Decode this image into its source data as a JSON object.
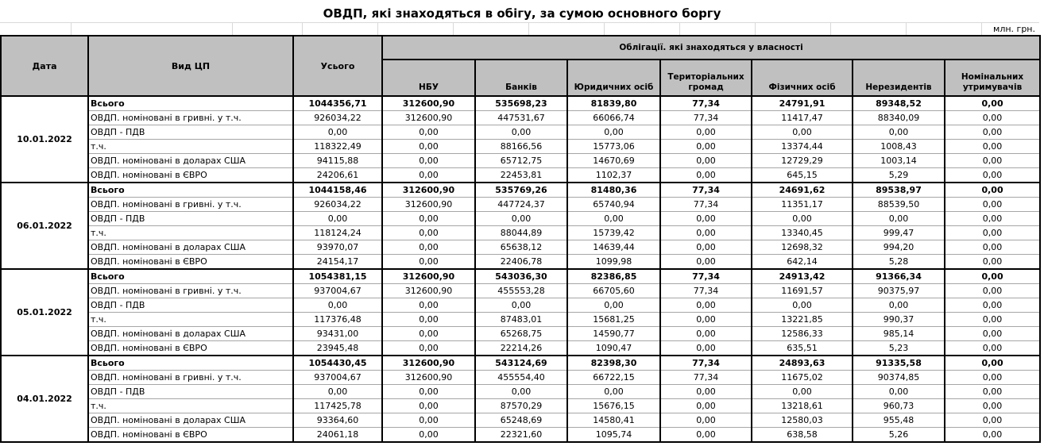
{
  "title": "ОВДП, які знаходяться в обігу, за сумою основного боргу",
  "unit_label": "млн. грн.",
  "table": {
    "col_headers": {
      "date": "Дата",
      "type": "Вид ЦП",
      "total": "Усього",
      "group": "Облігації. які знаходяться у власності",
      "owners": [
        "НБУ",
        "Банків",
        "Юридичних осіб",
        "Територіальних громад",
        "Фізичних осіб",
        "Нерезидентів",
        "Номінальних утримувачів"
      ]
    },
    "row_labels": [
      "Всього",
      "ОВДП. номіновані в гривні. у т.ч.",
      "ОВДП - ПДВ",
      "т.ч.",
      "ОВДП. номіновані в доларах США",
      "ОВДП. номіновані в ЄВРО"
    ],
    "groups": [
      {
        "date": "10.01.2022",
        "rows": [
          [
            "1044356,71",
            "312600,90",
            "535698,23",
            "81839,80",
            "77,34",
            "24791,91",
            "89348,52",
            "0,00"
          ],
          [
            "926034,22",
            "312600,90",
            "447531,67",
            "66066,74",
            "77,34",
            "11417,47",
            "88340,09",
            "0,00"
          ],
          [
            "0,00",
            "0,00",
            "0,00",
            "0,00",
            "0,00",
            "0,00",
            "0,00",
            "0,00"
          ],
          [
            "118322,49",
            "0,00",
            "88166,56",
            "15773,06",
            "0,00",
            "13374,44",
            "1008,43",
            "0,00"
          ],
          [
            "94115,88",
            "0,00",
            "65712,75",
            "14670,69",
            "0,00",
            "12729,29",
            "1003,14",
            "0,00"
          ],
          [
            "24206,61",
            "0,00",
            "22453,81",
            "1102,37",
            "0,00",
            "645,15",
            "5,29",
            "0,00"
          ]
        ]
      },
      {
        "date": "06.01.2022",
        "rows": [
          [
            "1044158,46",
            "312600,90",
            "535769,26",
            "81480,36",
            "77,34",
            "24691,62",
            "89538,97",
            "0,00"
          ],
          [
            "926034,22",
            "312600,90",
            "447724,37",
            "65740,94",
            "77,34",
            "11351,17",
            "88539,50",
            "0,00"
          ],
          [
            "0,00",
            "0,00",
            "0,00",
            "0,00",
            "0,00",
            "0,00",
            "0,00",
            "0,00"
          ],
          [
            "118124,24",
            "0,00",
            "88044,89",
            "15739,42",
            "0,00",
            "13340,45",
            "999,47",
            "0,00"
          ],
          [
            "93970,07",
            "0,00",
            "65638,12",
            "14639,44",
            "0,00",
            "12698,32",
            "994,20",
            "0,00"
          ],
          [
            "24154,17",
            "0,00",
            "22406,78",
            "1099,98",
            "0,00",
            "642,14",
            "5,28",
            "0,00"
          ]
        ]
      },
      {
        "date": "05.01.2022",
        "rows": [
          [
            "1054381,15",
            "312600,90",
            "543036,30",
            "82386,85",
            "77,34",
            "24913,42",
            "91366,34",
            "0,00"
          ],
          [
            "937004,67",
            "312600,90",
            "455553,28",
            "66705,60",
            "77,34",
            "11691,57",
            "90375,97",
            "0,00"
          ],
          [
            "0,00",
            "0,00",
            "0,00",
            "0,00",
            "0,00",
            "0,00",
            "0,00",
            "0,00"
          ],
          [
            "117376,48",
            "0,00",
            "87483,01",
            "15681,25",
            "0,00",
            "13221,85",
            "990,37",
            "0,00"
          ],
          [
            "93431,00",
            "0,00",
            "65268,75",
            "14590,77",
            "0,00",
            "12586,33",
            "985,14",
            "0,00"
          ],
          [
            "23945,48",
            "0,00",
            "22214,26",
            "1090,47",
            "0,00",
            "635,51",
            "5,23",
            "0,00"
          ]
        ]
      },
      {
        "date": "04.01.2022",
        "rows": [
          [
            "1054430,45",
            "312600,90",
            "543124,69",
            "82398,30",
            "77,34",
            "24893,63",
            "91335,58",
            "0,00"
          ],
          [
            "937004,67",
            "312600,90",
            "455554,40",
            "66722,15",
            "77,34",
            "11675,02",
            "90374,85",
            "0,00"
          ],
          [
            "0,00",
            "0,00",
            "0,00",
            "0,00",
            "0,00",
            "0,00",
            "0,00",
            "0,00"
          ],
          [
            "117425,78",
            "0,00",
            "87570,29",
            "15676,15",
            "0,00",
            "13218,61",
            "960,73",
            "0,00"
          ],
          [
            "93364,60",
            "0,00",
            "65248,69",
            "14580,41",
            "0,00",
            "12580,03",
            "955,48",
            "0,00"
          ],
          [
            "24061,18",
            "0,00",
            "22321,60",
            "1095,74",
            "0,00",
            "638,58",
            "5,26",
            "0,00"
          ]
        ]
      }
    ]
  }
}
